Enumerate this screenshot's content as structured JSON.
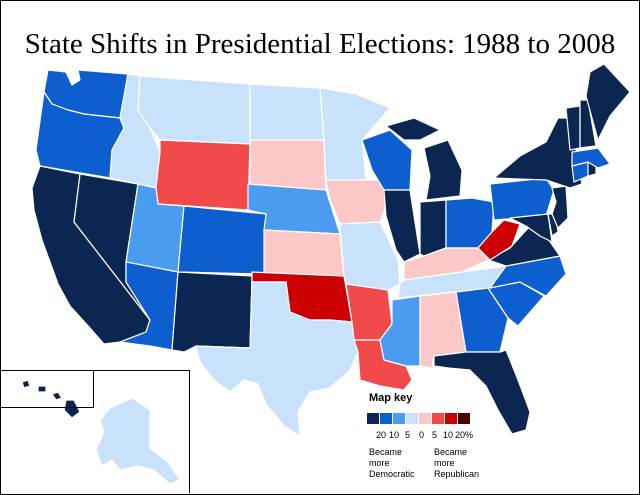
{
  "title": "State Shifts in Presidential Elections: 1988 to 2008",
  "legend": {
    "title": "Map key",
    "scale_labels": [
      "20",
      "10",
      "5",
      "0",
      "5",
      "10",
      "20%"
    ],
    "left_caption": [
      "Became",
      "more",
      "Democratic"
    ],
    "right_caption": [
      "Became",
      "more",
      "Republican"
    ]
  },
  "colors": {
    "dem_20": "#0b2650",
    "dem_10": "#0d5fcf",
    "dem_5": "#4b9cf0",
    "dem_0": "#c9e2fb",
    "rep_0": "#fbc7c7",
    "rep_5": "#f24a4a",
    "rep_10": "#cc0000",
    "rep_20": "#4d0000"
  },
  "states": [
    {
      "id": "WA",
      "shift": "dem_10"
    },
    {
      "id": "OR",
      "shift": "dem_10"
    },
    {
      "id": "CA",
      "shift": "dem_20"
    },
    {
      "id": "NV",
      "shift": "dem_20"
    },
    {
      "id": "ID",
      "shift": "dem_0"
    },
    {
      "id": "MT",
      "shift": "dem_0"
    },
    {
      "id": "WY",
      "shift": "rep_5"
    },
    {
      "id": "UT",
      "shift": "dem_5"
    },
    {
      "id": "AZ",
      "shift": "dem_10"
    },
    {
      "id": "CO",
      "shift": "dem_10"
    },
    {
      "id": "NM",
      "shift": "dem_20"
    },
    {
      "id": "ND",
      "shift": "dem_0"
    },
    {
      "id": "SD",
      "shift": "rep_0"
    },
    {
      "id": "NE",
      "shift": "dem_5"
    },
    {
      "id": "KS",
      "shift": "rep_0"
    },
    {
      "id": "OK",
      "shift": "rep_10"
    },
    {
      "id": "TX",
      "shift": "dem_0"
    },
    {
      "id": "MN",
      "shift": "dem_0"
    },
    {
      "id": "IA",
      "shift": "rep_0"
    },
    {
      "id": "MO",
      "shift": "dem_0"
    },
    {
      "id": "AR",
      "shift": "rep_5"
    },
    {
      "id": "LA",
      "shift": "rep_5"
    },
    {
      "id": "WI",
      "shift": "dem_10"
    },
    {
      "id": "IL",
      "shift": "dem_20"
    },
    {
      "id": "MI",
      "shift": "dem_20"
    },
    {
      "id": "IN",
      "shift": "dem_20"
    },
    {
      "id": "OH",
      "shift": "dem_10"
    },
    {
      "id": "KY",
      "shift": "rep_0"
    },
    {
      "id": "TN",
      "shift": "dem_0"
    },
    {
      "id": "MS",
      "shift": "dem_5"
    },
    {
      "id": "AL",
      "shift": "rep_0"
    },
    {
      "id": "GA",
      "shift": "dem_10"
    },
    {
      "id": "FL",
      "shift": "dem_20"
    },
    {
      "id": "SC",
      "shift": "dem_10"
    },
    {
      "id": "NC",
      "shift": "dem_10"
    },
    {
      "id": "VA",
      "shift": "dem_20"
    },
    {
      "id": "WV",
      "shift": "rep_10"
    },
    {
      "id": "PA",
      "shift": "dem_10"
    },
    {
      "id": "NY",
      "shift": "dem_20"
    },
    {
      "id": "NJ",
      "shift": "dem_20"
    },
    {
      "id": "MD",
      "shift": "dem_20"
    },
    {
      "id": "DE",
      "shift": "dem_20"
    },
    {
      "id": "CT",
      "shift": "dem_10"
    },
    {
      "id": "RI",
      "shift": "dem_20"
    },
    {
      "id": "MA",
      "shift": "dem_10"
    },
    {
      "id": "VT",
      "shift": "dem_20"
    },
    {
      "id": "NH",
      "shift": "dem_20"
    },
    {
      "id": "ME",
      "shift": "dem_20"
    },
    {
      "id": "AK",
      "shift": "dem_0"
    },
    {
      "id": "HI",
      "shift": "dem_20"
    }
  ]
}
